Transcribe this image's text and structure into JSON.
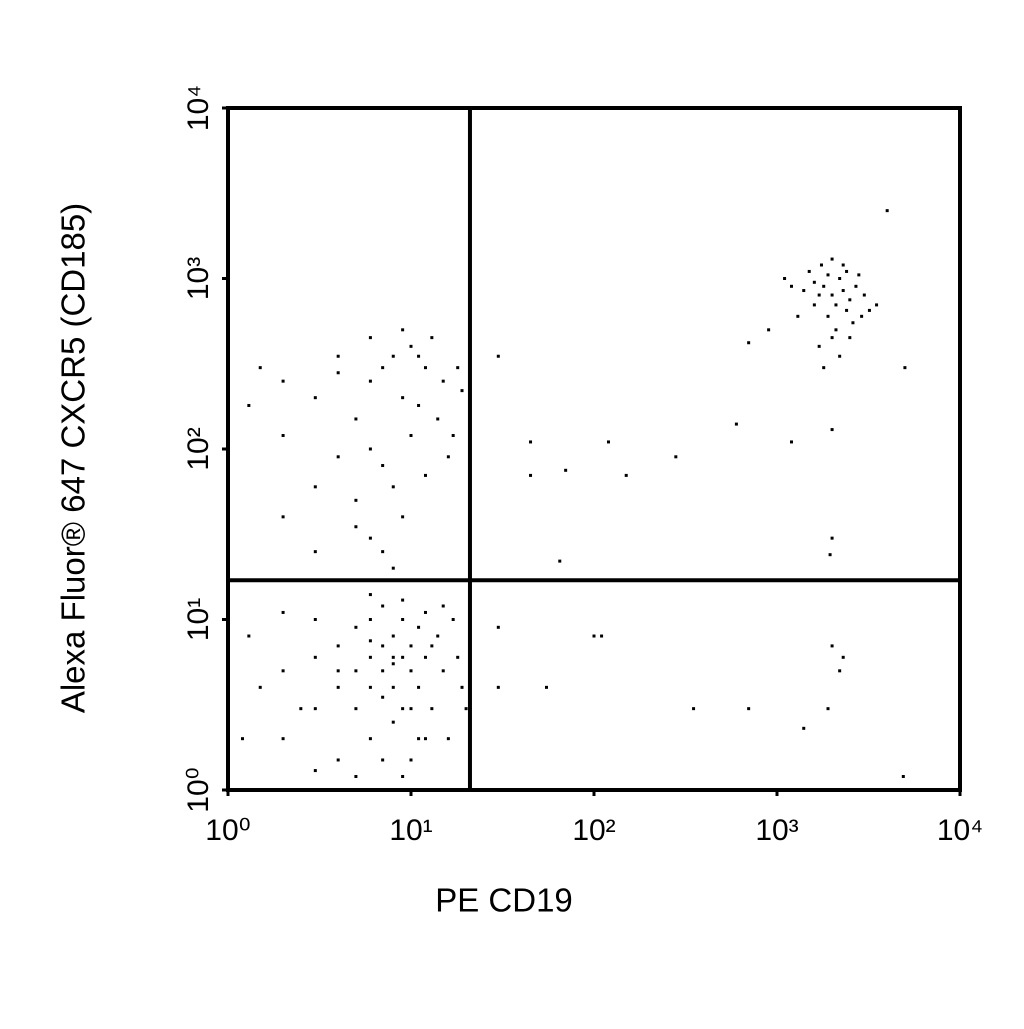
{
  "chart_data": {
    "type": "scatter",
    "xlabel": "PE CD19",
    "ylabel": "Alexa Fluor® 647 CXCR5 (CD185)",
    "xscale": "log",
    "yscale": "log",
    "xlim": [
      1,
      10000
    ],
    "ylim": [
      1,
      10000
    ],
    "xticks": [
      {
        "value": 1,
        "label": "10⁰"
      },
      {
        "value": 10,
        "label": "10¹"
      },
      {
        "value": 100,
        "label": "10²"
      },
      {
        "value": 1000,
        "label": "10³"
      },
      {
        "value": 10000,
        "label": "10⁴"
      }
    ],
    "yticks": [
      {
        "value": 1,
        "label": "10⁰"
      },
      {
        "value": 10,
        "label": "10¹"
      },
      {
        "value": 100,
        "label": "10²"
      },
      {
        "value": 1000,
        "label": "10³"
      },
      {
        "value": 10000,
        "label": "10⁴"
      }
    ],
    "quadrant_gate": {
      "x": 21,
      "y": 17
    },
    "color": "#000000",
    "x": [
      7,
      8,
      6,
      9,
      5,
      10,
      4,
      12,
      3,
      8,
      6,
      9,
      7,
      11,
      5,
      2,
      15,
      7,
      4,
      13,
      6,
      8,
      10,
      3,
      2,
      1.5,
      14,
      16,
      18,
      9,
      5,
      7,
      6,
      11,
      12,
      4,
      3,
      1.3,
      2.5,
      8,
      10,
      17,
      19,
      6,
      9,
      5,
      12,
      2,
      1.2,
      7,
      8,
      6,
      9,
      4,
      11,
      3,
      15,
      13,
      10,
      20,
      7,
      6,
      9,
      5,
      8,
      4,
      10,
      3,
      12,
      2,
      6,
      7,
      8,
      5,
      9,
      10,
      4,
      3,
      11,
      15,
      18,
      2,
      1.5,
      1.3,
      6,
      7,
      8,
      5,
      12,
      14,
      16,
      19,
      2,
      3,
      9,
      6,
      11,
      4,
      13,
      17,
      2000,
      1800,
      2200,
      1600,
      2500,
      1900,
      2300,
      1500,
      2100,
      2700,
      1700,
      2400,
      2000,
      3000,
      1400,
      2200,
      1900,
      2600,
      1300,
      1800,
      2100,
      2400,
      1600,
      3200,
      1200,
      2800,
      1700,
      2000,
      900,
      700,
      3500,
      2500,
      1100,
      2900,
      2300,
      1750,
      4000,
      30,
      45,
      120,
      70,
      150,
      45,
      280,
      600,
      1200,
      2000,
      1950,
      65,
      30,
      100,
      2000,
      2200,
      1900,
      350,
      700,
      1400,
      4900,
      30,
      55,
      110,
      2300,
      2000,
      5000
    ],
    "y": [
      5,
      4,
      6,
      3,
      5,
      7,
      4,
      6,
      3,
      8,
      2,
      10,
      1.5,
      4,
      9,
      5,
      5,
      12,
      7,
      3,
      4,
      2.5,
      5,
      6,
      2,
      4,
      8,
      2,
      6,
      1.2,
      3,
      7,
      10,
      9,
      2,
      1.5,
      10,
      8,
      3,
      6,
      3,
      10,
      4,
      14,
      13,
      1.2,
      11,
      11,
      2,
      3.5,
      5.5,
      7.5,
      6,
      5,
      2,
      1.3,
      12,
      7,
      1.5,
      3,
      300,
      250,
      200,
      150,
      350,
      280,
      400,
      200,
      300,
      250,
      100,
      80,
      60,
      50,
      40,
      120,
      90,
      60,
      180,
      250,
      300,
      120,
      300,
      180,
      30,
      25,
      20,
      35,
      70,
      150,
      90,
      220,
      40,
      25,
      500,
      450,
      350,
      350,
      450,
      120,
      800,
      900,
      1000,
      700,
      750,
      600,
      1200,
      1100,
      500,
      900,
      400,
      650,
      1300,
      800,
      850,
      350,
      1050,
      550,
      600,
      300,
      700,
      1100,
      950,
      650,
      900,
      1050,
      800,
      450,
      500,
      420,
      700,
      450,
      1000,
      600,
      850,
      1200,
      2500,
      350,
      110,
      110,
      75,
      70,
      70,
      90,
      140,
      110,
      30,
      24,
      22,
      9,
      8,
      7,
      5,
      3,
      3,
      3,
      2.3,
      1.2,
      4,
      4,
      8,
      6,
      130,
      300
    ]
  }
}
